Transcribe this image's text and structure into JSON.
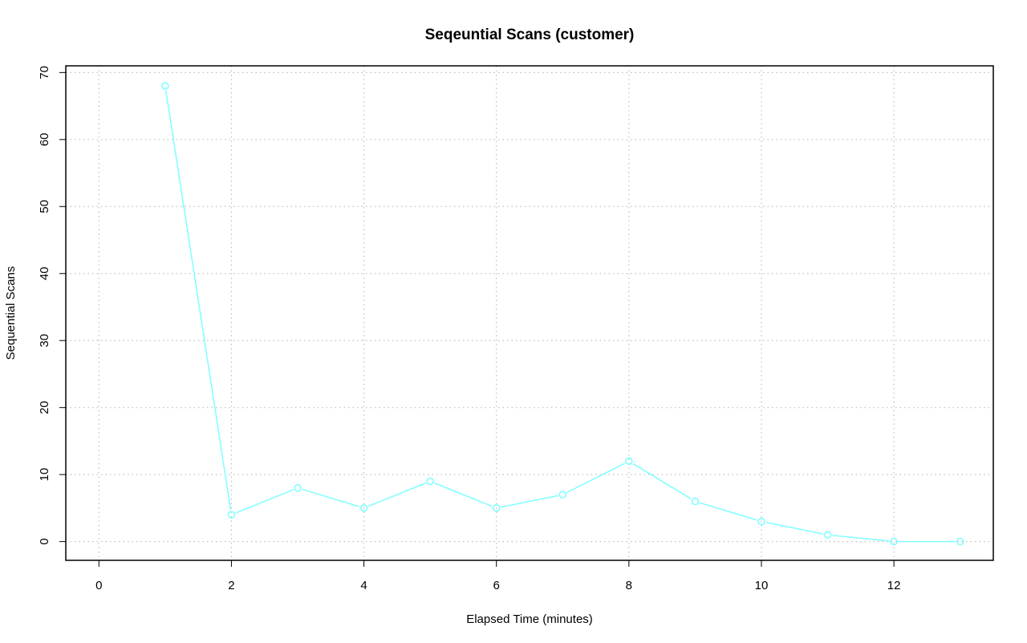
{
  "chart_data": {
    "type": "line",
    "title": "Seqeuntial Scans (customer)",
    "xlabel": "Elapsed Time (minutes)",
    "ylabel": "Sequential Scans",
    "xlim": [
      -0.5,
      13.5
    ],
    "ylim": [
      -2.8,
      71
    ],
    "x_ticks": [
      0,
      2,
      4,
      6,
      8,
      10,
      12
    ],
    "y_ticks": [
      0,
      10,
      20,
      30,
      40,
      50,
      60,
      70
    ],
    "grid": true,
    "series": [
      {
        "color": "#7fffff",
        "marker": "open-circle",
        "x": [
          1,
          2,
          3,
          4,
          5,
          6,
          7,
          8,
          9,
          10,
          11,
          12,
          13
        ],
        "values": [
          68,
          4,
          8,
          5,
          9,
          5,
          7,
          12,
          6,
          3,
          1,
          0,
          0
        ]
      }
    ]
  }
}
